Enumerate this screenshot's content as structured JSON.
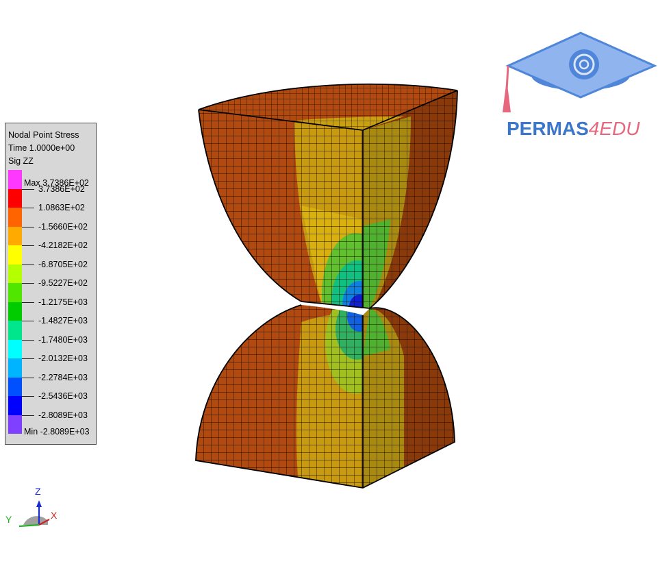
{
  "legend": {
    "title": "Nodal Point Stress",
    "time": "Time 1.0000e+00",
    "component": "Sig ZZ",
    "max_label": "Max 3.7386E+02",
    "min_label": "Min -2.8089E+03",
    "levels": [
      "3.7386E+02",
      "1.0863E+02",
      "-1.5660E+02",
      "-4.2182E+02",
      "-6.8705E+02",
      "-9.5227E+02",
      "-1.2175E+03",
      "-1.4827E+03",
      "-1.7480E+03",
      "-2.0132E+03",
      "-2.2784E+03",
      "-2.5436E+03",
      "-2.8089E+03"
    ],
    "colors": [
      "#ff38ff",
      "#ff0000",
      "#ff6400",
      "#ffaa00",
      "#ffff00",
      "#b4ff00",
      "#50e600",
      "#00cc00",
      "#00e68c",
      "#00ffff",
      "#00b4ff",
      "#0050ff",
      "#0000ff",
      "#8040ff"
    ]
  },
  "logo": {
    "part1": "PERMAS",
    "part2": "4EDU"
  },
  "triad": {
    "z": "Z",
    "y": "Y",
    "x": "X"
  }
}
